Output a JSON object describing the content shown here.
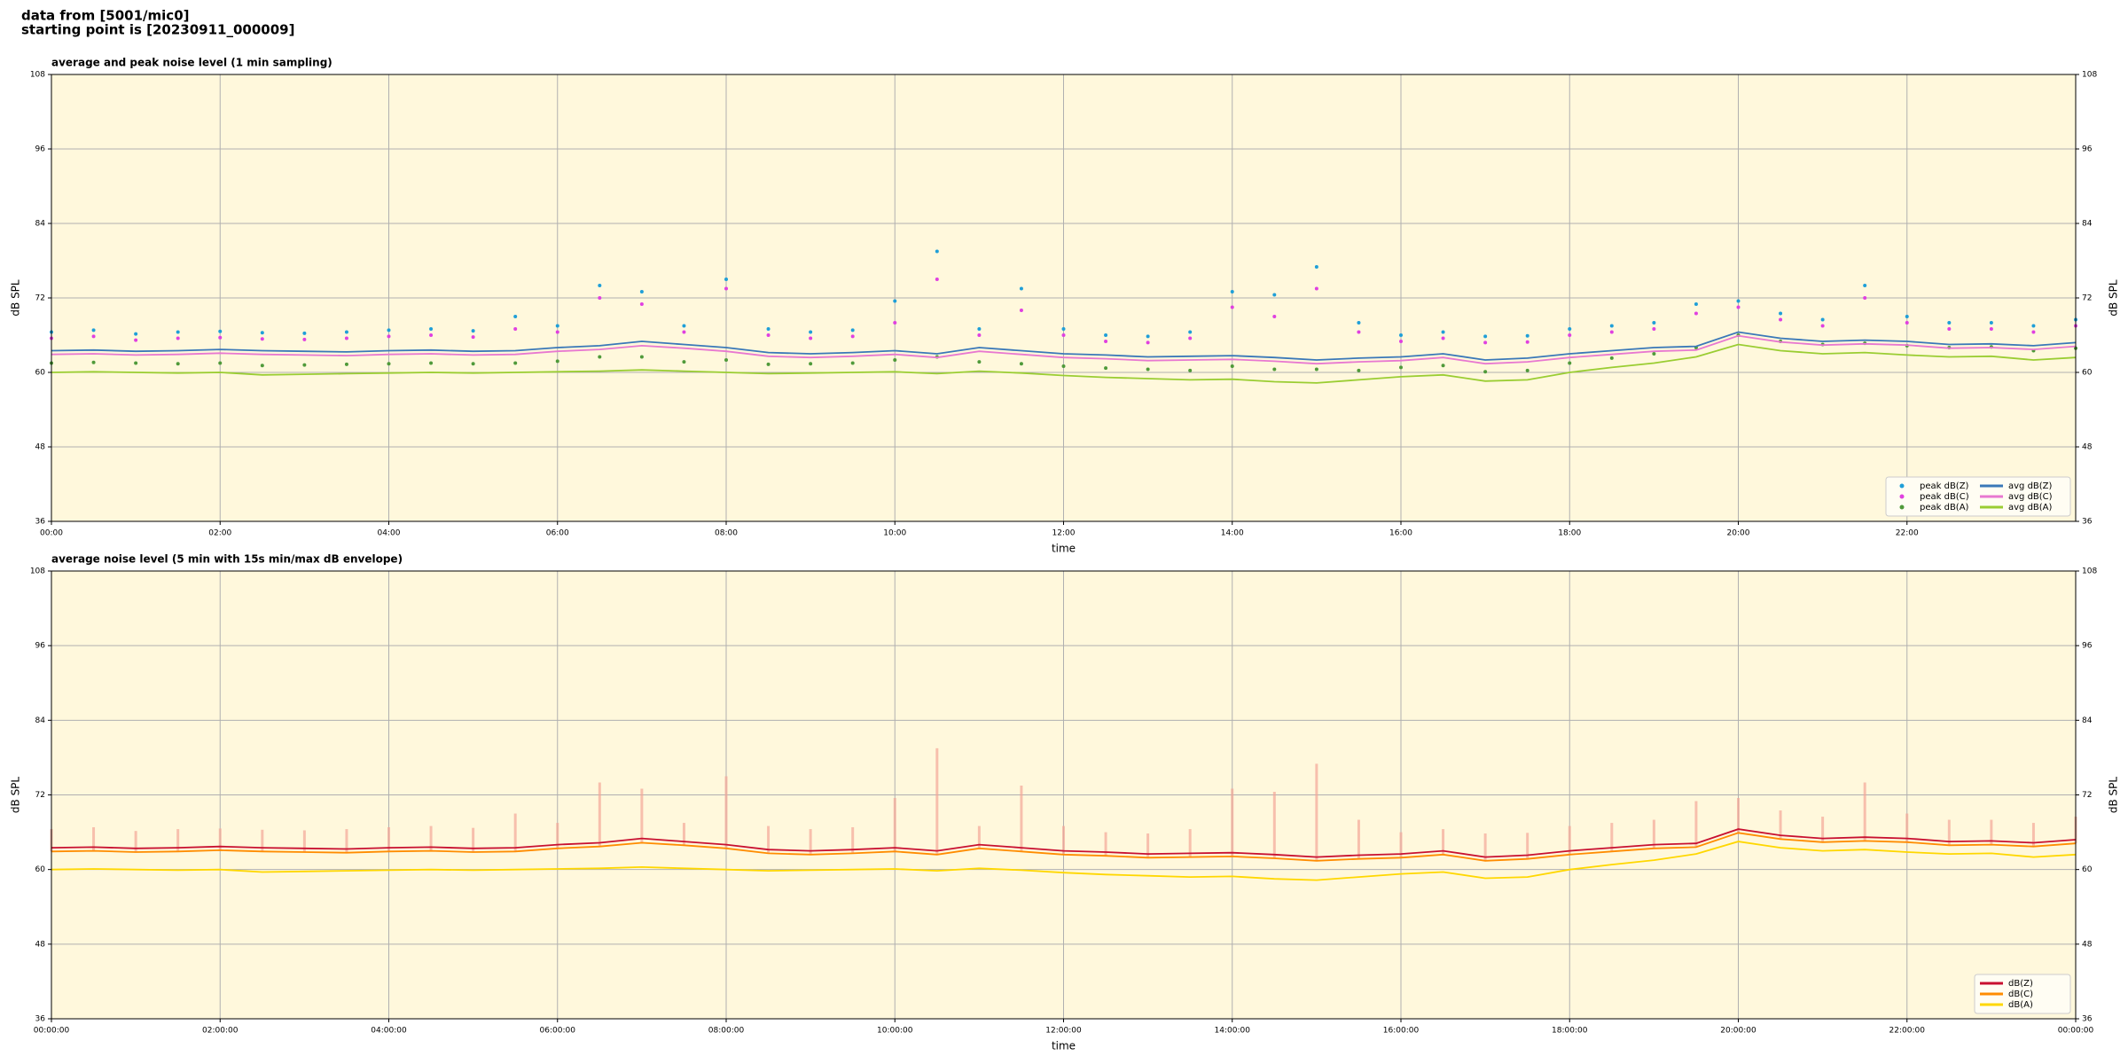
{
  "header": [
    "data from [5001/mic0]",
    "starting point is [20230911_000009]"
  ],
  "chart_data": [
    {
      "type": "line",
      "title": "average and peak noise level (1 min sampling)",
      "xlabel": "time",
      "ylabel": "dB SPL",
      "x": [
        0,
        0.5,
        1,
        1.5,
        2,
        2.5,
        3,
        3.5,
        4,
        4.5,
        5,
        5.5,
        6,
        6.5,
        7,
        7.5,
        8,
        8.5,
        9,
        9.5,
        10,
        10.5,
        11,
        11.5,
        12,
        12.5,
        13,
        13.5,
        14,
        14.5,
        15,
        15.5,
        16,
        16.5,
        17,
        17.5,
        18,
        18.5,
        19,
        19.5,
        20,
        20.5,
        21,
        21.5,
        22,
        22.5,
        23,
        23.5,
        24
      ],
      "xlim": [
        0,
        24
      ],
      "xticks": [
        {
          "value": 0,
          "label": "00:00"
        },
        {
          "value": 2,
          "label": "02:00"
        },
        {
          "value": 4,
          "label": "04:00"
        },
        {
          "value": 6,
          "label": "06:00"
        },
        {
          "value": 8,
          "label": "08:00"
        },
        {
          "value": 10,
          "label": "10:00"
        },
        {
          "value": 12,
          "label": "12:00"
        },
        {
          "value": 14,
          "label": "14:00"
        },
        {
          "value": 16,
          "label": "16:00"
        },
        {
          "value": 18,
          "label": "18:00"
        },
        {
          "value": 20,
          "label": "20:00"
        },
        {
          "value": 22,
          "label": "22:00"
        }
      ],
      "ylim": [
        36,
        108
      ],
      "yticks": [
        36,
        48,
        60,
        72,
        84,
        96,
        108
      ],
      "grid": true,
      "legend": "lower right",
      "legend_columns": 2,
      "series": [
        {
          "name": "peak dB(Z)",
          "mode": "markers",
          "color": "#1f9fd8",
          "values": [
            66.5,
            66.8,
            66.2,
            66.5,
            66.6,
            66.4,
            66.3,
            66.5,
            66.8,
            67.0,
            66.7,
            69.0,
            67.5,
            74.0,
            73.0,
            67.5,
            75.0,
            67.0,
            66.5,
            66.8,
            71.5,
            79.5,
            67.0,
            73.5,
            67.0,
            66.0,
            65.8,
            66.5,
            73.0,
            72.5,
            77.0,
            68.0,
            66.0,
            66.5,
            65.8,
            65.9,
            67.0,
            67.5,
            68.0,
            71.0,
            71.5,
            69.5,
            68.5,
            74.0,
            69.0,
            68.0,
            68.0,
            67.5,
            68.5
          ]
        },
        {
          "name": "peak dB(C)",
          "mode": "markers",
          "color": "#e040e0",
          "values": [
            65.5,
            65.8,
            65.2,
            65.5,
            65.6,
            65.4,
            65.3,
            65.5,
            65.8,
            66.0,
            65.7,
            67.0,
            66.5,
            72.0,
            71.0,
            66.5,
            73.5,
            66.0,
            65.5,
            65.8,
            68.0,
            75.0,
            66.0,
            70.0,
            66.0,
            65.0,
            64.8,
            65.5,
            70.5,
            69.0,
            73.5,
            66.5,
            65.0,
            65.5,
            64.8,
            64.9,
            66.0,
            66.5,
            67.0,
            69.5,
            70.5,
            68.5,
            67.5,
            72.0,
            68.0,
            67.0,
            67.0,
            66.5,
            67.5
          ]
        },
        {
          "name": "peak dB(A)",
          "mode": "markers",
          "color": "#4f9a3a",
          "values": [
            61.5,
            61.6,
            61.5,
            61.4,
            61.5,
            61.1,
            61.2,
            61.3,
            61.4,
            61.5,
            61.4,
            61.5,
            61.8,
            62.5,
            62.5,
            61.7,
            62.0,
            61.3,
            61.4,
            61.5,
            62.0,
            62.5,
            61.7,
            61.4,
            61.0,
            60.7,
            60.5,
            60.3,
            61.0,
            60.5,
            60.5,
            60.3,
            60.8,
            61.1,
            60.1,
            60.3,
            61.5,
            62.3,
            63.0,
            64.0,
            66.0,
            65.0,
            64.5,
            64.7,
            64.3,
            64.0,
            64.1,
            63.5,
            63.9
          ]
        },
        {
          "name": "avg dB(Z)",
          "mode": "lines",
          "color": "#3a78b8",
          "values": [
            63.5,
            63.6,
            63.4,
            63.5,
            63.7,
            63.5,
            63.4,
            63.3,
            63.5,
            63.6,
            63.4,
            63.5,
            64.0,
            64.3,
            65.0,
            64.5,
            64.0,
            63.2,
            63.0,
            63.2,
            63.5,
            63.0,
            64.0,
            63.5,
            63.0,
            62.8,
            62.5,
            62.6,
            62.7,
            62.4,
            62.0,
            62.3,
            62.5,
            63.0,
            62.0,
            62.3,
            63.0,
            63.5,
            64.0,
            64.2,
            66.5,
            65.5,
            65.0,
            65.2,
            65.0,
            64.5,
            64.6,
            64.3,
            64.8
          ]
        },
        {
          "name": "avg dB(C)",
          "mode": "lines",
          "color": "#e878d0",
          "values": [
            62.9,
            63.0,
            62.8,
            62.9,
            63.1,
            62.9,
            62.8,
            62.7,
            62.9,
            63.0,
            62.8,
            62.9,
            63.4,
            63.7,
            64.3,
            63.9,
            63.4,
            62.6,
            62.4,
            62.6,
            62.9,
            62.4,
            63.4,
            62.9,
            62.4,
            62.2,
            61.9,
            62.0,
            62.1,
            61.8,
            61.4,
            61.7,
            61.9,
            62.4,
            61.4,
            61.7,
            62.4,
            62.9,
            63.4,
            63.6,
            65.9,
            64.9,
            64.4,
            64.6,
            64.4,
            63.9,
            64.0,
            63.7,
            64.2
          ]
        },
        {
          "name": "avg dB(A)",
          "mode": "lines",
          "color": "#9acd32",
          "values": [
            60.0,
            60.1,
            60.0,
            59.9,
            60.0,
            59.6,
            59.7,
            59.8,
            59.9,
            60.0,
            59.9,
            60.0,
            60.1,
            60.2,
            60.4,
            60.2,
            60.0,
            59.8,
            59.9,
            60.0,
            60.1,
            59.8,
            60.2,
            59.9,
            59.5,
            59.2,
            59.0,
            58.8,
            58.9,
            58.5,
            58.3,
            58.8,
            59.3,
            59.6,
            58.6,
            58.8,
            60.0,
            60.8,
            61.5,
            62.5,
            64.5,
            63.5,
            63.0,
            63.2,
            62.8,
            62.5,
            62.6,
            62.0,
            62.4
          ]
        }
      ]
    },
    {
      "type": "line",
      "title": "average noise level (5 min with 15s min/max dB envelope)",
      "xlabel": "time",
      "ylabel": "dB SPL",
      "x": [
        0,
        0.5,
        1,
        1.5,
        2,
        2.5,
        3,
        3.5,
        4,
        4.5,
        5,
        5.5,
        6,
        6.5,
        7,
        7.5,
        8,
        8.5,
        9,
        9.5,
        10,
        10.5,
        11,
        11.5,
        12,
        12.5,
        13,
        13.5,
        14,
        14.5,
        15,
        15.5,
        16,
        16.5,
        17,
        17.5,
        18,
        18.5,
        19,
        19.5,
        20,
        20.5,
        21,
        21.5,
        22,
        22.5,
        23,
        23.5,
        24
      ],
      "xlim": [
        0,
        24
      ],
      "xticks": [
        {
          "value": 0,
          "label": "00:00:00"
        },
        {
          "value": 2,
          "label": "02:00:00"
        },
        {
          "value": 4,
          "label": "04:00:00"
        },
        {
          "value": 6,
          "label": "06:00:00"
        },
        {
          "value": 8,
          "label": "08:00:00"
        },
        {
          "value": 10,
          "label": "10:00:00"
        },
        {
          "value": 12,
          "label": "12:00:00"
        },
        {
          "value": 14,
          "label": "14:00:00"
        },
        {
          "value": 16,
          "label": "16:00:00"
        },
        {
          "value": 18,
          "label": "18:00:00"
        },
        {
          "value": 20,
          "label": "20:00:00"
        },
        {
          "value": 22,
          "label": "22:00:00"
        },
        {
          "value": 24,
          "label": "00:00:00"
        }
      ],
      "ylim": [
        36,
        108
      ],
      "yticks": [
        36,
        48,
        60,
        72,
        84,
        96,
        108
      ],
      "grid": true,
      "legend": "lower right",
      "legend_columns": 1,
      "envelope": {
        "color": "#f4a898",
        "upper": [
          66.5,
          66.8,
          66.2,
          66.5,
          66.6,
          66.4,
          66.3,
          66.5,
          66.8,
          67.0,
          66.7,
          69.0,
          67.5,
          74.0,
          73.0,
          67.5,
          75.0,
          67.0,
          66.5,
          66.8,
          71.5,
          79.5,
          67.0,
          73.5,
          67.0,
          66.0,
          65.8,
          66.5,
          73.0,
          72.5,
          77.0,
          68.0,
          66.0,
          66.5,
          65.8,
          65.9,
          67.0,
          67.5,
          68.0,
          71.0,
          71.5,
          69.5,
          68.5,
          74.0,
          69.0,
          68.0,
          68.0,
          67.5,
          68.5
        ],
        "lower": [
          62.9,
          63.0,
          62.8,
          62.9,
          63.1,
          62.9,
          62.8,
          62.7,
          62.9,
          63.0,
          62.8,
          62.9,
          63.4,
          63.7,
          64.3,
          63.9,
          63.4,
          62.6,
          62.4,
          62.6,
          62.9,
          62.4,
          63.4,
          62.9,
          62.4,
          62.2,
          61.9,
          62.0,
          62.1,
          61.8,
          61.4,
          61.7,
          61.9,
          62.4,
          61.4,
          61.7,
          62.4,
          62.9,
          63.4,
          63.6,
          65.9,
          64.9,
          64.4,
          64.6,
          64.4,
          63.9,
          64.0,
          63.7,
          64.2
        ]
      },
      "series": [
        {
          "name": "dB(Z)",
          "mode": "lines",
          "color": "#c81030",
          "values": [
            63.5,
            63.6,
            63.4,
            63.5,
            63.7,
            63.5,
            63.4,
            63.3,
            63.5,
            63.6,
            63.4,
            63.5,
            64.0,
            64.3,
            65.0,
            64.5,
            64.0,
            63.2,
            63.0,
            63.2,
            63.5,
            63.0,
            64.0,
            63.5,
            63.0,
            62.8,
            62.5,
            62.6,
            62.7,
            62.4,
            62.0,
            62.3,
            62.5,
            63.0,
            62.0,
            62.3,
            63.0,
            63.5,
            64.0,
            64.2,
            66.5,
            65.5,
            65.0,
            65.2,
            65.0,
            64.5,
            64.6,
            64.3,
            64.8
          ]
        },
        {
          "name": "dB(C)",
          "mode": "lines",
          "color": "#ff8c00",
          "values": [
            62.9,
            63.0,
            62.8,
            62.9,
            63.1,
            62.9,
            62.8,
            62.7,
            62.9,
            63.0,
            62.8,
            62.9,
            63.4,
            63.7,
            64.3,
            63.9,
            63.4,
            62.6,
            62.4,
            62.6,
            62.9,
            62.4,
            63.4,
            62.9,
            62.4,
            62.2,
            61.9,
            62.0,
            62.1,
            61.8,
            61.4,
            61.7,
            61.9,
            62.4,
            61.4,
            61.7,
            62.4,
            62.9,
            63.4,
            63.6,
            65.9,
            64.9,
            64.4,
            64.6,
            64.4,
            63.9,
            64.0,
            63.7,
            64.2
          ]
        },
        {
          "name": "dB(A)",
          "mode": "lines",
          "color": "#ffd700",
          "values": [
            60.0,
            60.1,
            60.0,
            59.9,
            60.0,
            59.6,
            59.7,
            59.8,
            59.9,
            60.0,
            59.9,
            60.0,
            60.1,
            60.2,
            60.4,
            60.2,
            60.0,
            59.8,
            59.9,
            60.0,
            60.1,
            59.8,
            60.2,
            59.9,
            59.5,
            59.2,
            59.0,
            58.8,
            58.9,
            58.5,
            58.3,
            58.8,
            59.3,
            59.6,
            58.6,
            58.8,
            60.0,
            60.8,
            61.5,
            62.5,
            64.5,
            63.5,
            63.0,
            63.2,
            62.8,
            62.5,
            62.6,
            62.0,
            62.4
          ]
        }
      ]
    }
  ]
}
